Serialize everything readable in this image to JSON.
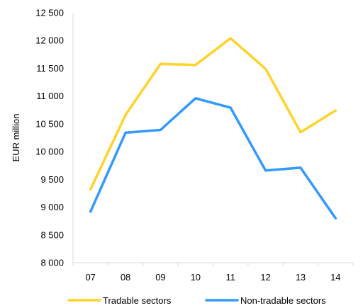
{
  "chart_data": {
    "type": "line",
    "title": "",
    "xlabel": "",
    "ylabel": "EUR million",
    "categories": [
      "07",
      "08",
      "09",
      "10",
      "11",
      "12",
      "13",
      "14"
    ],
    "ylim": [
      8000,
      12500
    ],
    "y_ticks": [
      8000,
      8500,
      9000,
      9500,
      10000,
      10500,
      11000,
      11500,
      12000,
      12500
    ],
    "y_tick_labels": [
      "8 000",
      "8 500",
      "9 000",
      "9 500",
      "10 000",
      "10 500",
      "11 000",
      "11 500",
      "12 000",
      "12 500"
    ],
    "grid": false,
    "legend_position": "bottom",
    "series": [
      {
        "name": "Tradable sectors",
        "color": "#FFD32A",
        "values": [
          9320,
          10660,
          11580,
          11560,
          12040,
          11490,
          10350,
          10740
        ]
      },
      {
        "name": "Non-tradable sectors",
        "color": "#3399FF",
        "values": [
          8920,
          10340,
          10390,
          10960,
          10790,
          9660,
          9710,
          8800
        ]
      }
    ]
  }
}
